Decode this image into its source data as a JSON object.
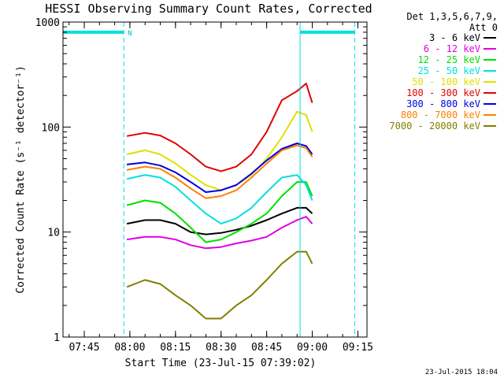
{
  "chart_data": {
    "type": "line",
    "title": "HESSI Observing Summary Count Rates, Corrected",
    "xlabel": "Start Time (23-Jul-15 07:39:02)",
    "ylabel": "Corrected Count Rate (s⁻¹ detector⁻¹)",
    "xlim": [
      "07:38",
      "09:18"
    ],
    "ylim": [
      1,
      1000
    ],
    "yscale": "log",
    "x_ticks": [
      "07:45",
      "08:00",
      "08:15",
      "08:30",
      "08:45",
      "09:00",
      "09:15"
    ],
    "y_ticks": [
      {
        "value": 1,
        "label": "1"
      },
      {
        "value": 10,
        "label": "10"
      },
      {
        "value": 100,
        "label": "100"
      },
      {
        "value": 1000,
        "label": "1000"
      }
    ],
    "legend_title": [
      "Det 1,3,5,6,7,9,",
      "Att 0"
    ],
    "legend_position": "right",
    "footer": "23-Jul-2015 18:04",
    "x": [
      "07:59",
      "08:05",
      "08:10",
      "08:15",
      "08:20",
      "08:25",
      "08:30",
      "08:35",
      "08:40",
      "08:45",
      "08:50",
      "08:55",
      "08:58",
      "09:00"
    ],
    "series": [
      {
        "name": "3 - 6 keV",
        "color": "#000000",
        "values": [
          12,
          13,
          13,
          12,
          10,
          9.5,
          9.8,
          10.5,
          11.5,
          13,
          15,
          17,
          17,
          15
        ]
      },
      {
        "name": "6 - 12 keV",
        "color": "#e000e0",
        "values": [
          8.5,
          9,
          9,
          8.5,
          7.5,
          7,
          7.2,
          7.8,
          8.3,
          9,
          11,
          13,
          14,
          12
        ]
      },
      {
        "name": "12 - 25 keV",
        "color": "#00e000",
        "values": [
          18,
          20,
          19,
          15,
          11,
          8,
          8.5,
          10,
          12,
          15,
          22,
          30,
          30,
          22
        ]
      },
      {
        "name": "25 - 50 keV",
        "color": "#00e0e0",
        "values": [
          32,
          35,
          33,
          27,
          20,
          15,
          12,
          13.5,
          17,
          24,
          33,
          35,
          28,
          20
        ]
      },
      {
        "name": "50 - 100 keV",
        "color": "#e0e000",
        "values": [
          55,
          60,
          55,
          45,
          35,
          28,
          25,
          28,
          35,
          50,
          80,
          140,
          130,
          90
        ]
      },
      {
        "name": "100 - 300 keV",
        "color": "#e00000",
        "values": [
          82,
          88,
          83,
          70,
          55,
          42,
          38,
          42,
          55,
          90,
          180,
          220,
          260,
          170
        ]
      },
      {
        "name": "300 - 800 keV",
        "color": "#0000e0",
        "values": [
          44,
          46,
          43,
          37,
          30,
          24,
          25,
          28,
          36,
          48,
          62,
          70,
          66,
          55
        ]
      },
      {
        "name": "800 - 7000 keV",
        "color": "#ff8000",
        "values": [
          39,
          42,
          40,
          33,
          26,
          21,
          22,
          25,
          33,
          45,
          60,
          67,
          63,
          52
        ]
      },
      {
        "name": "7000 - 20000 keV",
        "color": "#808000",
        "values": [
          3,
          3.5,
          3.2,
          2.5,
          2,
          1.5,
          1.5,
          2,
          2.5,
          3.5,
          5,
          6.5,
          6.5,
          5
        ]
      }
    ],
    "annotations": [
      {
        "type": "flag-bar",
        "y": 800,
        "x": [
          "07:38",
          "07:58"
        ],
        "label": "N"
      },
      {
        "type": "flag-bar",
        "y": 800,
        "x": [
          "08:56",
          "09:14"
        ],
        "label": ""
      },
      {
        "type": "vline",
        "style": "dashed",
        "x": "07:58"
      },
      {
        "type": "vline",
        "style": "dashed",
        "x": "09:14"
      },
      {
        "type": "vline",
        "style": "solid",
        "x": "07:38"
      },
      {
        "type": "vline",
        "style": "solid",
        "x": "08:56"
      }
    ]
  }
}
